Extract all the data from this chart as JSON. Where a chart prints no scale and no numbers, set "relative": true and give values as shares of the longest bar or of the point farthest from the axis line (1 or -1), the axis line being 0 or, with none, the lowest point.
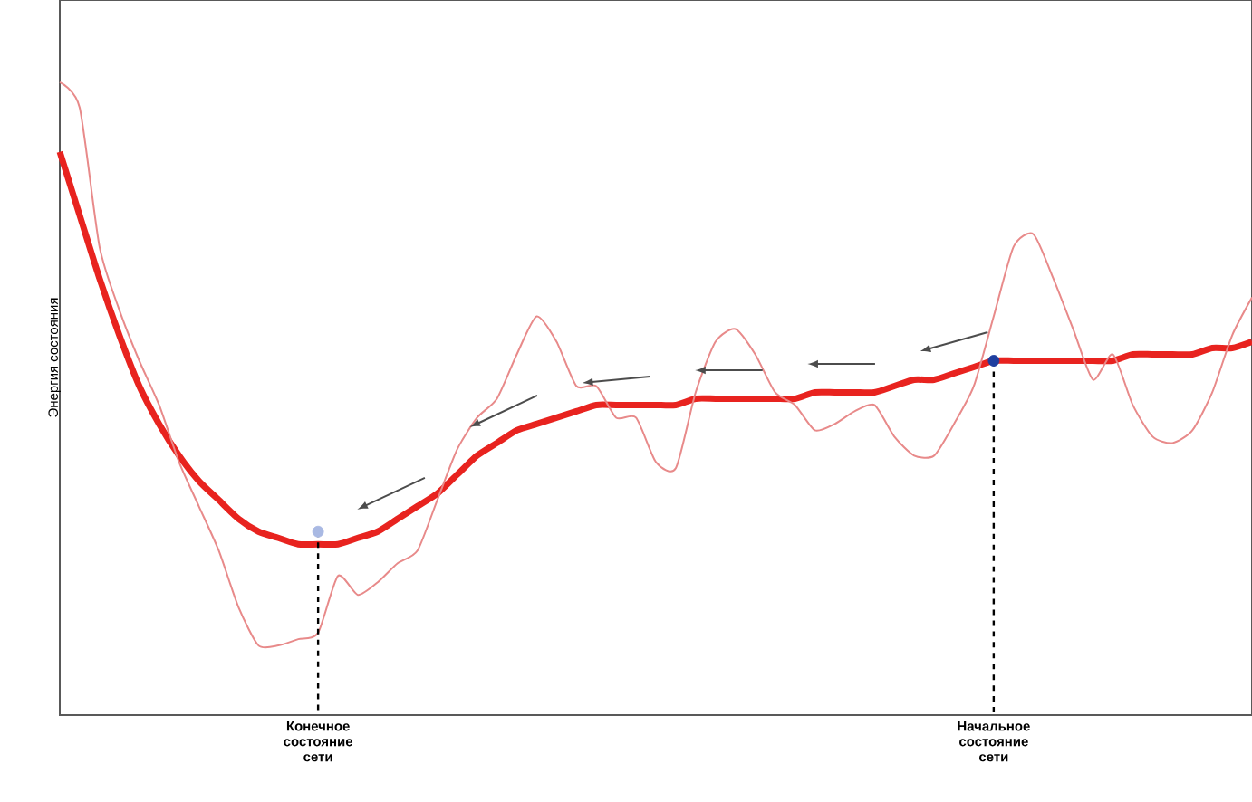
{
  "chart_data": {
    "type": "line",
    "relative": true,
    "ylabel": "Энергия состояния",
    "categories": [
      null,
      null,
      null,
      null,
      null,
      null,
      null,
      null,
      null,
      null,
      null,
      null,
      null,
      "Конечное состояние сети",
      null,
      null,
      null,
      null,
      null,
      null,
      null,
      null,
      null,
      null,
      null,
      null,
      null,
      null,
      null,
      null,
      null,
      null,
      null,
      null,
      null,
      null,
      null,
      null,
      null,
      null,
      null,
      null,
      null,
      null,
      null,
      null,
      null,
      "Начальное состояние сети",
      null,
      null,
      null,
      null,
      null,
      null,
      null,
      null,
      null,
      null,
      null,
      null,
      null
    ],
    "series": [
      {
        "color": "#e8231f",
        "values": [
          0.89,
          0.79,
          0.69,
          0.6,
          0.52,
          0.46,
          0.41,
          0.37,
          0.34,
          0.31,
          0.29,
          0.28,
          0.27,
          0.27,
          0.27,
          0.28,
          0.29,
          0.31,
          0.33,
          0.35,
          0.38,
          0.41,
          0.43,
          0.45,
          0.46,
          0.47,
          0.48,
          0.49,
          0.49,
          0.49,
          0.49,
          0.49,
          0.5,
          0.5,
          0.5,
          0.5,
          0.5,
          0.5,
          0.51,
          0.51,
          0.51,
          0.51,
          0.52,
          0.53,
          0.53,
          0.54,
          0.55,
          0.56,
          0.56,
          0.56,
          0.56,
          0.56,
          0.56,
          0.56,
          0.57,
          0.57,
          0.57,
          0.57,
          0.58,
          0.58,
          0.59
        ]
      },
      {
        "color": "#e88a8a",
        "values": [
          1.0,
          0.96,
          0.74,
          0.64,
          0.56,
          0.49,
          0.4,
          0.33,
          0.26,
          0.17,
          0.11,
          0.11,
          0.12,
          0.13,
          0.22,
          0.19,
          0.21,
          0.24,
          0.26,
          0.34,
          0.42,
          0.47,
          0.5,
          0.57,
          0.63,
          0.59,
          0.52,
          0.52,
          0.47,
          0.47,
          0.4,
          0.39,
          0.51,
          0.59,
          0.61,
          0.57,
          0.51,
          0.49,
          0.45,
          0.46,
          0.48,
          0.49,
          0.44,
          0.41,
          0.41,
          0.46,
          0.52,
          0.63,
          0.74,
          0.76,
          0.69,
          0.61,
          0.53,
          0.57,
          0.49,
          0.44,
          0.43,
          0.45,
          0.51,
          0.6,
          0.66
        ]
      },
      {
        "type": "lollipop",
        "marker": "circle",
        "line_style": "dashed",
        "x": [
          "Конечное состояние сети",
          "Начальное состояние сети"
        ],
        "values": [
          0.29,
          0.56
        ],
        "colors": [
          "#a9b9e3",
          "#1f3f9f"
        ]
      }
    ]
  }
}
